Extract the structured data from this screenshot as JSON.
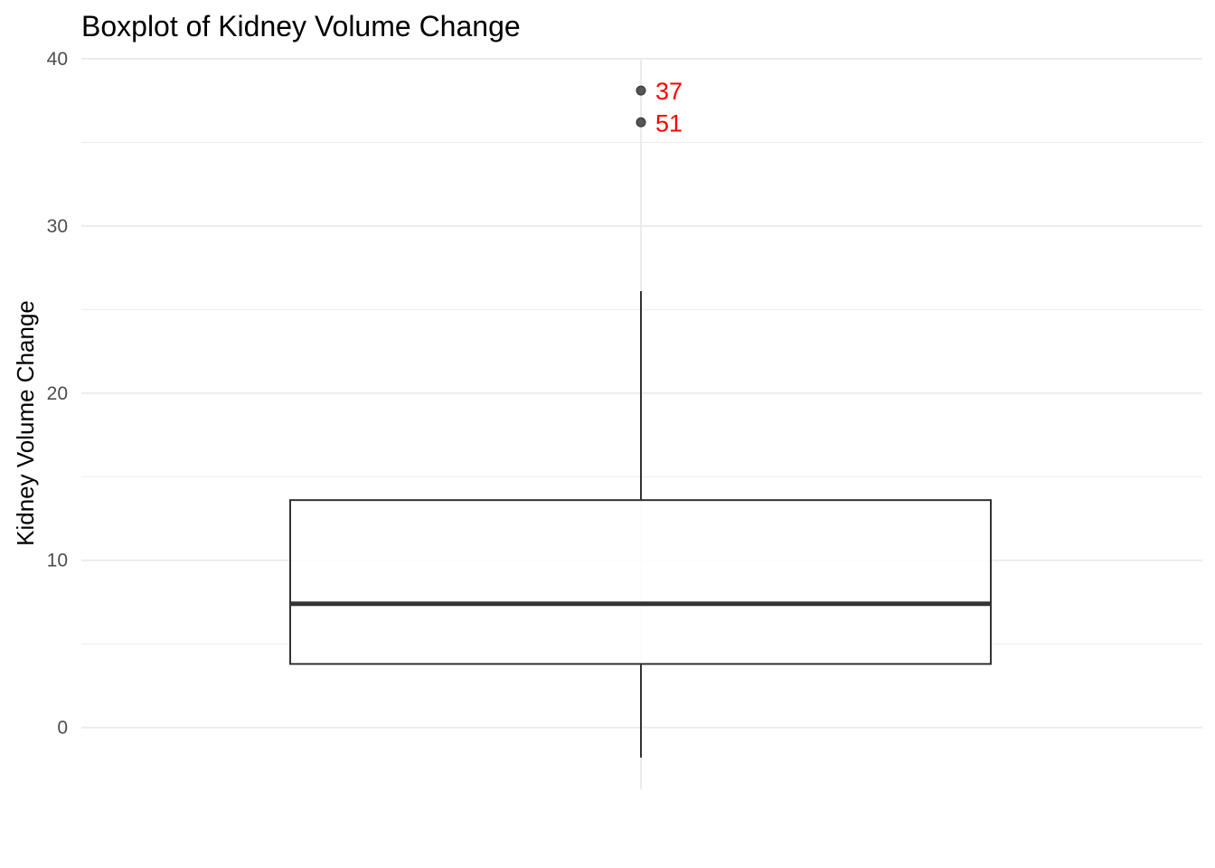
{
  "chart_data": {
    "type": "boxplot",
    "title": "Boxplot of Kidney Volume Change",
    "xlabel": "",
    "ylabel": "Kidney Volume Change",
    "ylim": [
      -3.7,
      40
    ],
    "y_ticks": [
      0,
      10,
      20,
      30,
      40
    ],
    "y_tick_labels": [
      "0",
      "10",
      "20",
      "30",
      "40"
    ],
    "grid": true,
    "box": {
      "min": -1.8,
      "q1": 3.8,
      "median": 7.4,
      "q3": 13.6,
      "max": 26.1
    },
    "outliers": [
      {
        "label": "37",
        "value": 38.1
      },
      {
        "label": "51",
        "value": 36.2
      }
    ],
    "colors": {
      "outlier_label": "#ff0000",
      "box_line": "#333333",
      "grid": "#ebebeb"
    }
  }
}
